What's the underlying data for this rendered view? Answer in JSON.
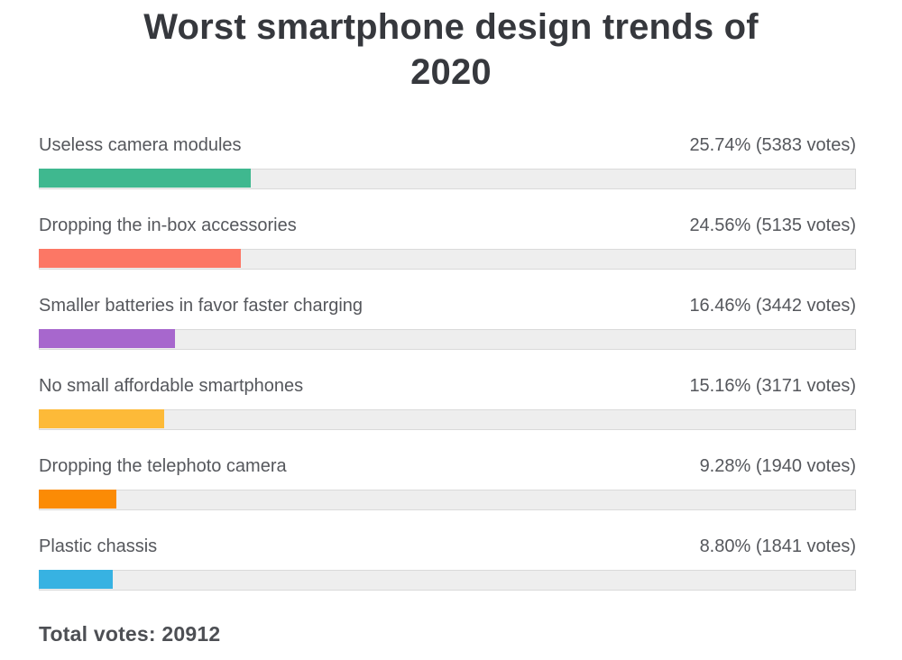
{
  "title_lines": [
    "Worst smartphone design trends of",
    "2020"
  ],
  "total_votes_text": "Total votes: 20912",
  "chart_data": {
    "type": "bar",
    "orientation": "horizontal",
    "title": "Worst smartphone design trends of 2020",
    "categories": [
      "Useless camera modules",
      "Dropping the in-box accessories",
      "Smaller batteries in favor faster charging",
      "No small affordable smartphones",
      "Dropping the telephoto camera",
      "Plastic chassis"
    ],
    "values": [
      25.74,
      24.56,
      16.46,
      15.16,
      9.28,
      8.8
    ],
    "votes": [
      5383,
      5135,
      3442,
      3171,
      1940,
      1841
    ],
    "value_labels": [
      "25.74% (5383 votes)",
      "24.56% (5135 votes)",
      "16.46% (3442 votes)",
      "15.16% (3171 votes)",
      "9.28% (1940 votes)",
      "8.80% (1841 votes)"
    ],
    "bar_colors": [
      "#3fb88f",
      "#fc7765",
      "#a767cd",
      "#fdba38",
      "#fb8b05",
      "#37b2e2"
    ],
    "track_color": "#eeeeee",
    "xlim": [
      0,
      100
    ],
    "total_votes": 20912,
    "legend": false,
    "grid": false
  }
}
